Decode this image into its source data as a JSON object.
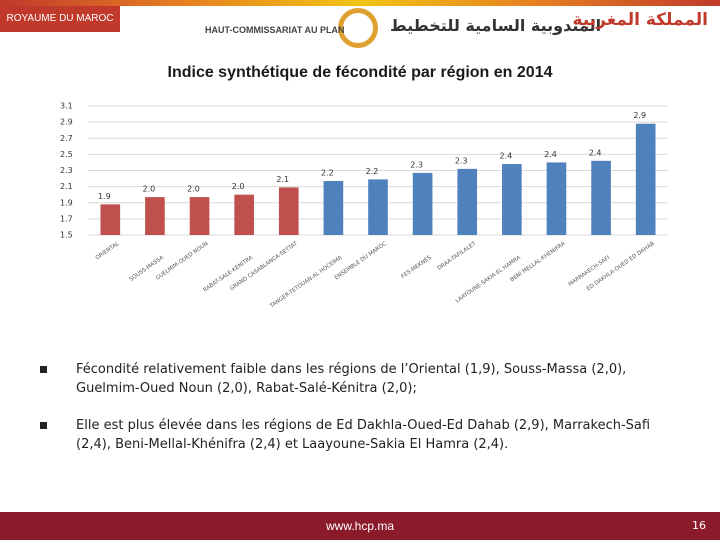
{
  "header": {
    "country": "ROYAUME DU MAROC",
    "institution": "HAUT-COMMISSARIAT AU PLAN",
    "institution_ar": "المندوبية السامية للتخطيط",
    "country_ar": "المملكة المغربية"
  },
  "chart_data": {
    "type": "bar",
    "title": "Indice synthétique de fécondité par région en 2014",
    "categories": [
      "ORIENTAL",
      "SOUSS-MASSA",
      "GUELMIM-OUED NOUN",
      "RABAT-SALE-KENITRA",
      "GRAND CASABLANCA-SETTAT",
      "TANGER-TETOUAN-AL HOCEIMA",
      "ENSEMBLE DU MAROC",
      "FES-MEKNES",
      "DRAA-TAFILALET",
      "LAAYOUNE-SAKIA EL HAMRA",
      "BENI MELLAL-KHENIFRA",
      "MARRAKECH-SAFI",
      "ED DAKHLA-OUED ED DAHAB"
    ],
    "values": [
      1.88,
      1.97,
      1.97,
      2.0,
      2.09,
      2.17,
      2.19,
      2.27,
      2.32,
      2.38,
      2.4,
      2.42,
      2.88
    ],
    "value_labels": [
      "1.9",
      "2.0",
      "2.0",
      "2.0",
      "2.1",
      "2.2",
      "2.2",
      "2.3",
      "2.3",
      "2.4",
      "2.4",
      "2.4",
      "2.9"
    ],
    "colors": [
      "#c0504d",
      "#c0504d",
      "#c0504d",
      "#c0504d",
      "#c0504d",
      "#4f81bd",
      "#4f81bd",
      "#4f81bd",
      "#4f81bd",
      "#4f81bd",
      "#4f81bd",
      "#4f81bd",
      "#4f81bd"
    ],
    "ylim": [
      1.5,
      3.1
    ],
    "yticks": [
      1.5,
      1.7,
      1.9,
      2.1,
      2.3,
      2.5,
      2.7,
      2.9,
      3.1
    ],
    "grid": true
  },
  "bullets": [
    "Fécondité relativement faible dans les régions de l’Oriental (1,9), Souss-Massa (2,0), Guelmim-Oued Noun (2,0), Rabat-Salé-Kénitra (2,0);",
    "Elle est plus élevée dans les régions de Ed Dakhla-Oued-Ed Dahab (2,9), Marrakech-Safi (2,4), Beni-Mellal-Khénifra (2,4) et Laayoune-Sakia El Hamra (2,4)."
  ],
  "footer": {
    "url": "www.hcp.ma",
    "page": "16"
  }
}
